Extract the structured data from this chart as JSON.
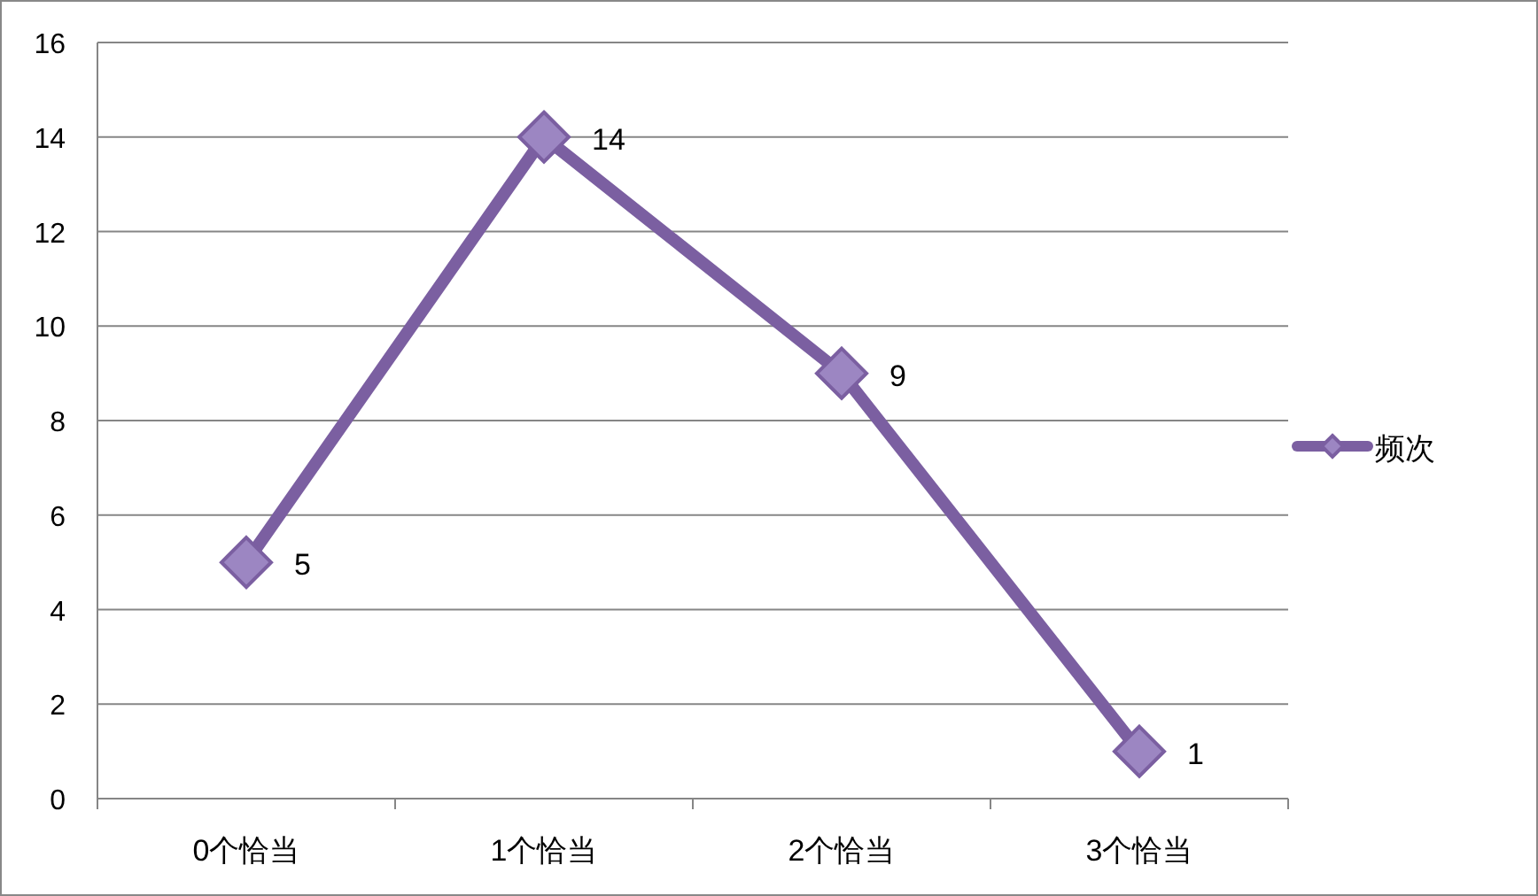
{
  "chart_data": {
    "type": "line",
    "categories": [
      "0个恰当",
      "1个恰当",
      "2个恰当",
      "3个恰当"
    ],
    "series": [
      {
        "name": "频次",
        "color": "#7b5fa1",
        "values": [
          5,
          14,
          9,
          1
        ]
      }
    ],
    "ylim": [
      0,
      16
    ],
    "yticks": [
      0,
      2,
      4,
      6,
      8,
      10,
      12,
      14,
      16
    ],
    "grid": "y",
    "legend": "right",
    "marker": "diamond",
    "line_style": "solid",
    "data_labels": true
  }
}
